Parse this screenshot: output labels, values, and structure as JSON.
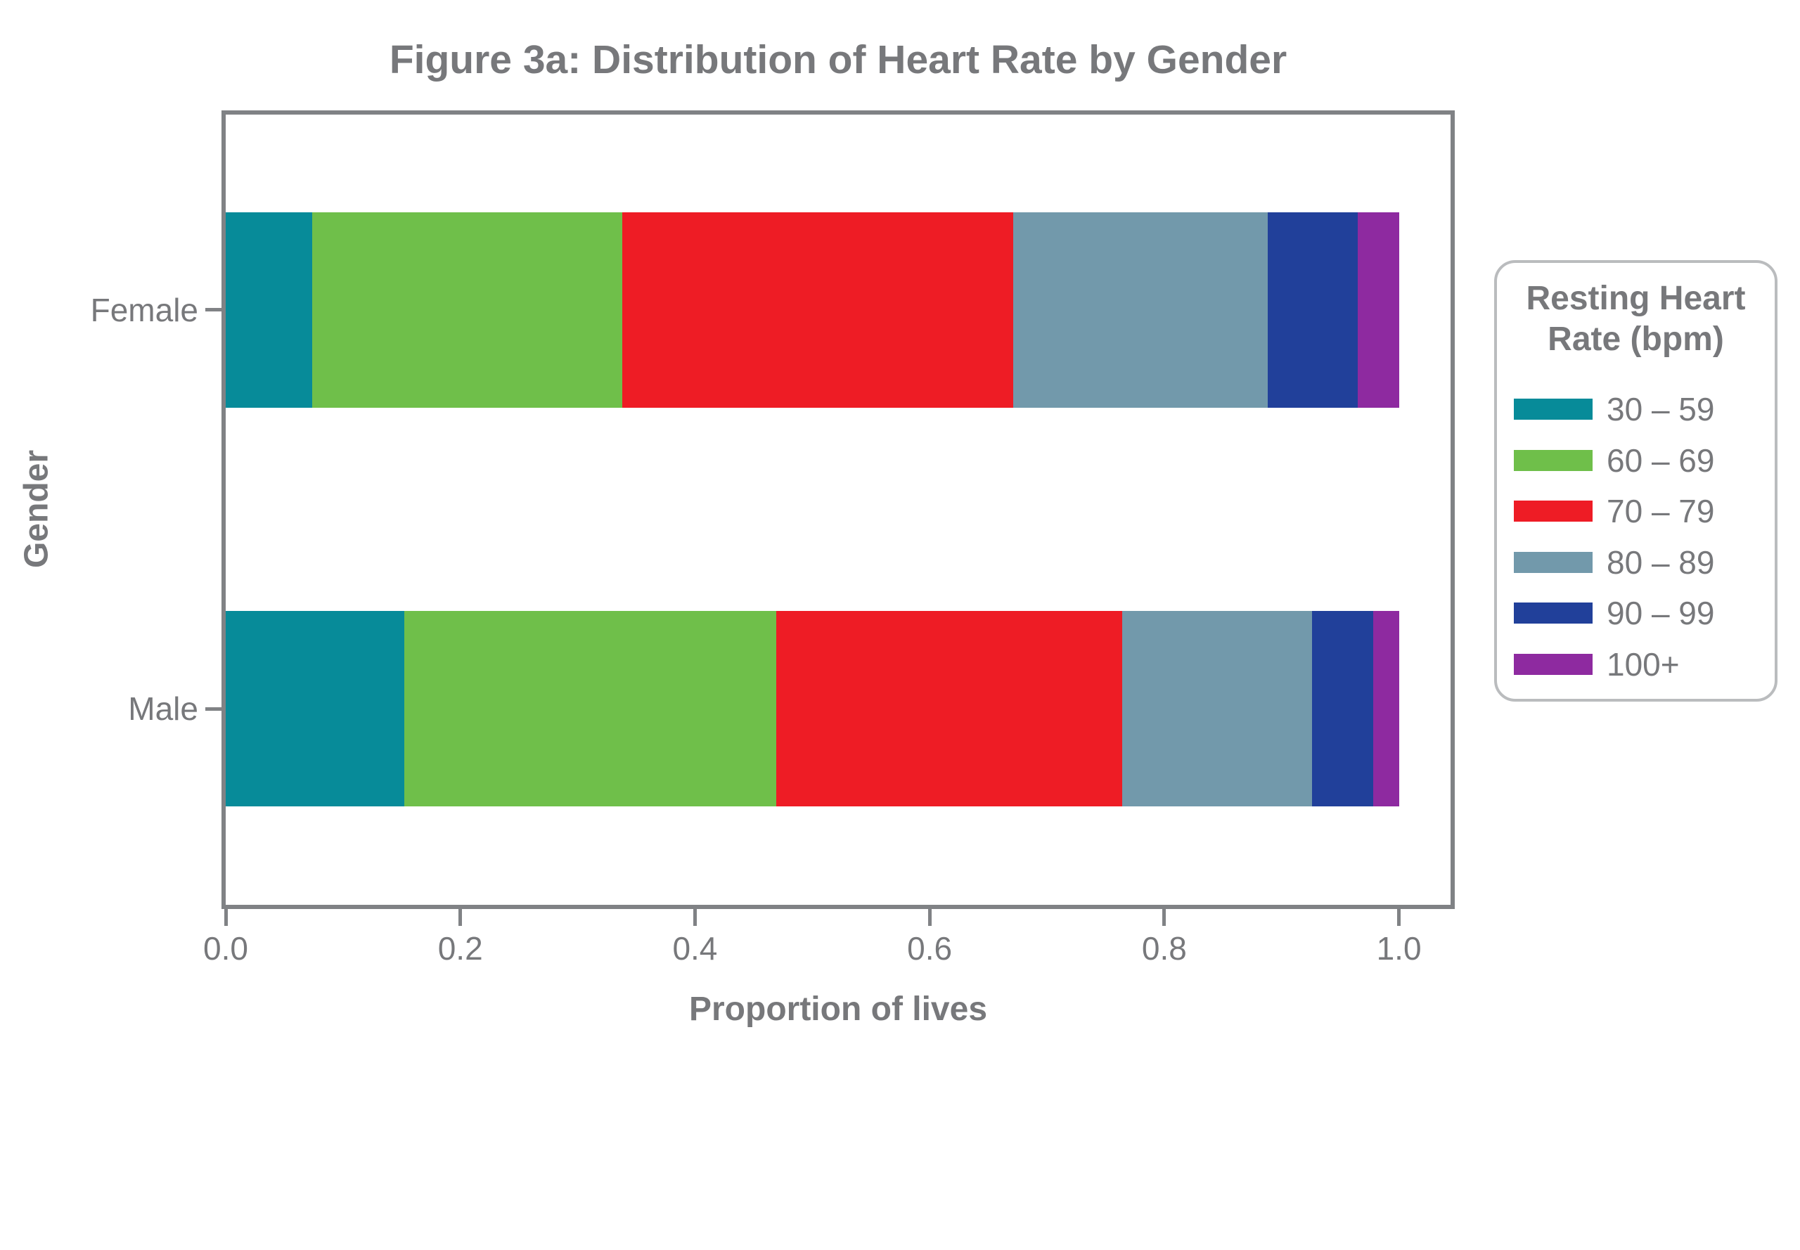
{
  "title": "Figure 3a: Distribution of Heart Rate by Gender",
  "colors": {
    "text_gray": "#77787B",
    "axis_gray": "#808285",
    "legend_border_gray": "#BABCBE",
    "background": "#FFFFFF"
  },
  "chart_data": {
    "type": "bar",
    "orientation": "horizontal",
    "stacked": true,
    "title": "Figure 3a: Distribution of Heart Rate by Gender",
    "xlabel": "Proportion of lives",
    "ylabel": "Gender",
    "categories": [
      "Female",
      "Male"
    ],
    "xlim": [
      0,
      1.044
    ],
    "xticks": [
      0.0,
      0.2,
      0.4,
      0.6,
      0.8,
      1.0
    ],
    "xtick_labels": [
      "0.0",
      "0.2",
      "0.4",
      "0.6",
      "0.8",
      "1.0"
    ],
    "grid": false,
    "legend": {
      "position": "right",
      "title": "Resting Heart Rate (bpm)",
      "title_lines": [
        "Resting Heart",
        "Rate (bpm)"
      ]
    },
    "series": [
      {
        "name": "30 – 59",
        "color": "#078B99",
        "values": [
          0.074,
          0.152
        ]
      },
      {
        "name": "60 – 69",
        "color": "#6FBF4A",
        "values": [
          0.264,
          0.317
        ]
      },
      {
        "name": "70 – 79",
        "color": "#EE1C25",
        "values": [
          0.333,
          0.295
        ]
      },
      {
        "name": "80 – 89",
        "color": "#7299AB",
        "values": [
          0.217,
          0.162
        ]
      },
      {
        "name": "90 – 99",
        "color": "#21409A",
        "values": [
          0.077,
          0.052
        ]
      },
      {
        "name": "100+",
        "color": "#8E2AA0",
        "values": [
          0.035,
          0.022
        ]
      }
    ]
  }
}
